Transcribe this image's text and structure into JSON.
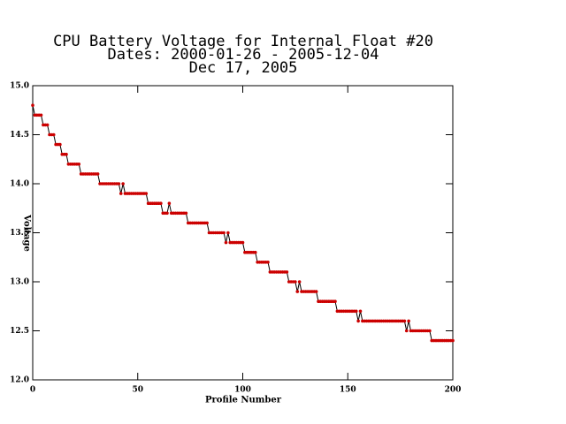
{
  "chart_data": {
    "type": "scatter",
    "title": [
      "CPU Battery Voltage for Internal Float #20",
      "Dates:  2000-01-26 -  2005-12-04",
      "Dec 17, 2005"
    ],
    "x_label": "Profile Number",
    "y_label": "Voltage",
    "xlim": [
      0,
      200
    ],
    "xticks": [
      0,
      50,
      100,
      150,
      200
    ],
    "ylim": [
      12,
      15
    ],
    "yticks": [
      {
        "value": 12,
        "label": "12.0"
      },
      {
        "value": 12.5,
        "label": "12.5"
      },
      {
        "value": 13,
        "label": "13.0"
      },
      {
        "value": 13.5,
        "label": "13.5"
      },
      {
        "value": 14,
        "label": "14.0"
      },
      {
        "value": 14.5,
        "label": "14.5"
      },
      {
        "value": 15,
        "label": "15.0"
      }
    ],
    "line_color": "#000000",
    "marker_color": "#cc0000",
    "x": [
      0,
      1,
      2,
      3,
      4,
      5,
      6,
      7,
      8,
      9,
      10,
      11,
      12,
      13,
      14,
      15,
      16,
      17,
      18,
      19,
      20,
      21,
      22,
      23,
      24,
      25,
      26,
      27,
      28,
      29,
      30,
      31,
      32,
      33,
      34,
      35,
      36,
      37,
      38,
      39,
      40,
      41,
      42,
      43,
      44,
      45,
      46,
      47,
      48,
      49,
      50,
      51,
      52,
      53,
      54,
      55,
      56,
      57,
      58,
      59,
      60,
      61,
      62,
      63,
      64,
      65,
      66,
      67,
      68,
      69,
      70,
      71,
      72,
      73,
      74,
      75,
      76,
      77,
      78,
      79,
      80,
      81,
      82,
      83,
      84,
      85,
      86,
      87,
      88,
      89,
      90,
      91,
      92,
      93,
      94,
      95,
      96,
      97,
      98,
      99,
      100,
      101,
      102,
      103,
      104,
      105,
      106,
      107,
      108,
      109,
      110,
      111,
      112,
      113,
      114,
      115,
      116,
      117,
      118,
      119,
      120,
      121,
      122,
      123,
      124,
      125,
      126,
      127,
      128,
      129,
      130,
      131,
      132,
      133,
      134,
      135,
      136,
      137,
      138,
      139,
      140,
      141,
      142,
      143,
      144,
      145,
      146,
      147,
      148,
      149,
      150,
      151,
      152,
      153,
      154,
      155,
      156,
      157,
      158,
      159,
      160,
      161,
      162,
      163,
      164,
      165,
      166,
      167,
      168,
      169,
      170,
      171,
      172,
      173,
      174,
      175,
      176,
      177,
      178,
      179,
      180,
      181,
      182,
      183,
      184,
      185,
      186,
      187,
      188,
      189,
      190,
      191,
      192,
      193,
      194,
      195,
      196,
      197,
      198,
      199,
      200
    ],
    "values": [
      14.8,
      14.7,
      14.7,
      14.7,
      14.7,
      14.6,
      14.6,
      14.6,
      14.5,
      14.5,
      14.5,
      14.4,
      14.4,
      14.4,
      14.3,
      14.3,
      14.3,
      14.2,
      14.2,
      14.2,
      14.2,
      14.2,
      14.2,
      14.1,
      14.1,
      14.1,
      14.1,
      14.1,
      14.1,
      14.1,
      14.1,
      14.1,
      14.0,
      14.0,
      14.0,
      14.0,
      14.0,
      14.0,
      14.0,
      14.0,
      14.0,
      14.0,
      13.9,
      14.0,
      13.9,
      13.9,
      13.9,
      13.9,
      13.9,
      13.9,
      13.9,
      13.9,
      13.9,
      13.9,
      13.9,
      13.8,
      13.8,
      13.8,
      13.8,
      13.8,
      13.8,
      13.8,
      13.7,
      13.7,
      13.7,
      13.8,
      13.7,
      13.7,
      13.7,
      13.7,
      13.7,
      13.7,
      13.7,
      13.7,
      13.6,
      13.6,
      13.6,
      13.6,
      13.6,
      13.6,
      13.6,
      13.6,
      13.6,
      13.6,
      13.5,
      13.5,
      13.5,
      13.5,
      13.5,
      13.5,
      13.5,
      13.5,
      13.4,
      13.5,
      13.4,
      13.4,
      13.4,
      13.4,
      13.4,
      13.4,
      13.4,
      13.3,
      13.3,
      13.3,
      13.3,
      13.3,
      13.3,
      13.2,
      13.2,
      13.2,
      13.2,
      13.2,
      13.2,
      13.1,
      13.1,
      13.1,
      13.1,
      13.1,
      13.1,
      13.1,
      13.1,
      13.1,
      13.0,
      13.0,
      13.0,
      13.0,
      12.9,
      13.0,
      12.9,
      12.9,
      12.9,
      12.9,
      12.9,
      12.9,
      12.9,
      12.9,
      12.8,
      12.8,
      12.8,
      12.8,
      12.8,
      12.8,
      12.8,
      12.8,
      12.8,
      12.7,
      12.7,
      12.7,
      12.7,
      12.7,
      12.7,
      12.7,
      12.7,
      12.7,
      12.7,
      12.6,
      12.7,
      12.6,
      12.6,
      12.6,
      12.6,
      12.6,
      12.6,
      12.6,
      12.6,
      12.6,
      12.6,
      12.6,
      12.6,
      12.6,
      12.6,
      12.6,
      12.6,
      12.6,
      12.6,
      12.6,
      12.6,
      12.6,
      12.5,
      12.6,
      12.5,
      12.5,
      12.5,
      12.5,
      12.5,
      12.5,
      12.5,
      12.5,
      12.5,
      12.5,
      12.4,
      12.4,
      12.4,
      12.4,
      12.4,
      12.4,
      12.4,
      12.4,
      12.4,
      12.4,
      12.4
    ]
  }
}
